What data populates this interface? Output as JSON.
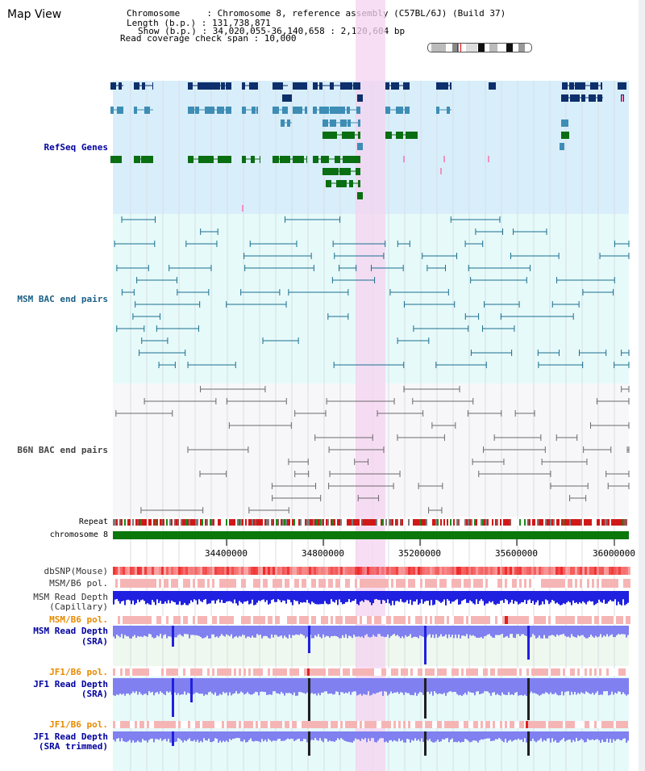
{
  "title": "Map View",
  "info": {
    "chromosome": "Chromosome     : Chromosome 8, reference assembly (C57BL/6J) (Build 37)",
    "length": "Length (b.p.) : 131,738,871",
    "show": "Show (b.p.) : 34,020,055-36,140,658 : 2,120,604 bp",
    "span": "Read coverage check span : 10,000"
  },
  "tracks": {
    "refseq": "RefSeq Genes",
    "msm_bac": "MSM BAC end pairs",
    "b6n_bac": "B6N BAC end pairs",
    "repeat": "Repeat",
    "chromosome": "chromosome 8",
    "dbsnp": "dbSNP(Mouse)",
    "msm_b6_pol": "MSM/B6 pol.",
    "msm_depth_cap_1": "MSM Read Depth",
    "msm_depth_cap_2": "(Capillary)",
    "msm_b6_pol2": "MSM/B6 pol.",
    "msm_depth_sra_1": "MSM Read Depth",
    "msm_depth_sra_2": "(SRA)",
    "jf1_b6_pol": "JF1/B6 pol.",
    "jf1_depth_sra_1": "JF1 Read Depth",
    "jf1_depth_sra_2": "(SRA)",
    "jf1_b6_pol2": "JF1/B6 pol.",
    "jf1_depth_trim_1": "JF1 Read Depth",
    "jf1_depth_trim_2": "(SRA trimmed)"
  },
  "axis": {
    "ticks": [
      "34400000",
      "34800000",
      "35200000",
      "35600000",
      "36000000"
    ]
  },
  "colors": {
    "refseq_bg": "#d9eefb",
    "msm_bg": "#e6fafa",
    "b6n_bg": "#f7f7fa",
    "highlight": "#f5d3f0",
    "gene_dark": "#0d2f6b",
    "gene_mid": "#3d8db5",
    "gene_green": "#0a6e12",
    "msm_line": "#1a6f8f",
    "b6n_line": "#6a6a6a",
    "depth_blue": "#2020e0",
    "depth_light": "#8080f0",
    "pol_pink": "#f6b5b5",
    "label_blue": "#0000a0",
    "label_teal": "#1a5f86",
    "label_orange": "#e88a00"
  }
}
